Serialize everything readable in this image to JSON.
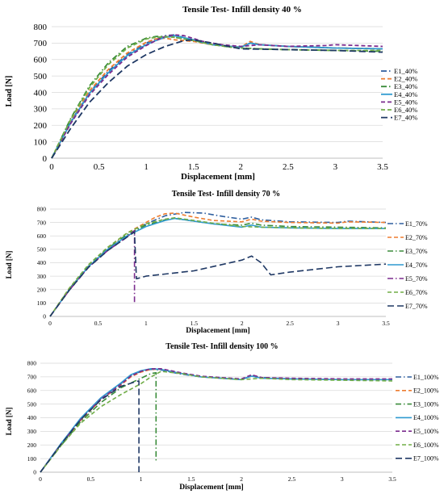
{
  "chart_data": [
    {
      "type": "line",
      "title": "Tensile Test- Infill density 40 %",
      "xlabel": "Displacement [mm]",
      "ylabel": "Load [N]",
      "xlim": [
        0,
        3.5
      ],
      "ylim": [
        0,
        800
      ],
      "xticks": [
        "0",
        "0.5",
        "1",
        "1.5",
        "2",
        "2.5",
        "3",
        "3.5"
      ],
      "yticks": [
        "0",
        "100",
        "200",
        "300",
        "400",
        "500",
        "600",
        "700",
        "800"
      ],
      "legend_position": "right",
      "grid": "horizontal",
      "series": [
        {
          "name": "E1_40%",
          "color": "#2e5e9e",
          "dash": "dashdot",
          "x": [
            0,
            0.2,
            0.4,
            0.6,
            0.8,
            1.0,
            1.1,
            1.2,
            1.3,
            1.5,
            1.7,
            1.9,
            2.0,
            2.1,
            2.2,
            2.5,
            3.0,
            3.5
          ],
          "y": [
            0,
            220,
            400,
            530,
            630,
            700,
            725,
            745,
            750,
            715,
            690,
            680,
            675,
            700,
            690,
            680,
            670,
            665
          ]
        },
        {
          "name": "E2_40%",
          "color": "#ed7d31",
          "dash": "dashed",
          "x": [
            0,
            0.2,
            0.4,
            0.6,
            0.8,
            1.0,
            1.1,
            1.2,
            1.3,
            1.5,
            1.7,
            1.9,
            2.0,
            2.1,
            2.2,
            2.5,
            3.0,
            3.5
          ],
          "y": [
            0,
            225,
            410,
            540,
            640,
            705,
            725,
            730,
            720,
            710,
            690,
            680,
            675,
            710,
            690,
            680,
            670,
            665
          ]
        },
        {
          "name": "E3_40%",
          "color": "#3b8c3b",
          "dash": "dashdot",
          "x": [
            0,
            0.2,
            0.4,
            0.6,
            0.8,
            1.0,
            1.1,
            1.2,
            1.3,
            1.5,
            1.7,
            1.9,
            2.0,
            2.2,
            2.5,
            3.0,
            3.5
          ],
          "y": [
            0,
            240,
            440,
            580,
            680,
            730,
            740,
            740,
            735,
            715,
            690,
            675,
            670,
            665,
            660,
            655,
            650
          ]
        },
        {
          "name": "E4_40%",
          "color": "#2e9ad0",
          "dash": "solid",
          "x": [
            0,
            0.2,
            0.4,
            0.6,
            0.8,
            1.0,
            1.1,
            1.2,
            1.3,
            1.5,
            1.7,
            1.9,
            2.0,
            2.1,
            2.2,
            2.5,
            3.0,
            3.5
          ],
          "y": [
            0,
            215,
            395,
            520,
            625,
            690,
            715,
            735,
            745,
            720,
            690,
            680,
            675,
            700,
            690,
            680,
            670,
            665
          ]
        },
        {
          "name": "E5_40%",
          "color": "#7b2c8e",
          "dash": "dashed",
          "x": [
            0,
            0.2,
            0.4,
            0.6,
            0.8,
            1.0,
            1.1,
            1.2,
            1.3,
            1.4,
            1.6,
            1.8,
            2.0,
            2.2,
            2.5,
            2.9,
            3.0,
            3.5
          ],
          "y": [
            0,
            210,
            385,
            510,
            615,
            685,
            715,
            740,
            750,
            745,
            710,
            690,
            680,
            690,
            680,
            685,
            690,
            680
          ]
        },
        {
          "name": "E6_40%",
          "color": "#70ad47",
          "dash": "dashed",
          "x": [
            0,
            0.2,
            0.4,
            0.6,
            0.8,
            1.0,
            1.1,
            1.2,
            1.3,
            1.5,
            1.7,
            1.9,
            2.0,
            2.2,
            2.5,
            3.0,
            3.5
          ],
          "y": [
            0,
            235,
            430,
            570,
            670,
            725,
            735,
            738,
            735,
            715,
            690,
            675,
            670,
            665,
            660,
            655,
            655
          ]
        },
        {
          "name": "E7_40%",
          "color": "#1f3864",
          "dash": "longdash",
          "x": [
            0,
            0.2,
            0.4,
            0.6,
            0.8,
            1.0,
            1.2,
            1.4,
            1.5,
            1.7,
            2.0,
            2.5,
            3.0,
            3.5
          ],
          "y": [
            0,
            180,
            340,
            460,
            560,
            630,
            680,
            715,
            720,
            700,
            665,
            660,
            655,
            645
          ]
        }
      ]
    },
    {
      "type": "line",
      "title": "Tensile Test- Infill density 70 %",
      "xlabel": "Displacement [mm]",
      "ylabel": "Load [N]",
      "xlim": [
        0,
        3.5
      ],
      "ylim": [
        0,
        800
      ],
      "xticks": [
        "0",
        "0.5",
        "1",
        "1.5",
        "2",
        "2.5",
        "3",
        "3.5"
      ],
      "yticks": [
        "0",
        "100",
        "200",
        "300",
        "400",
        "500",
        "600",
        "700",
        "800"
      ],
      "legend_position": "right",
      "grid": "horizontal",
      "series": [
        {
          "name": "E1_70%",
          "color": "#2e5e9e",
          "dash": "dashdot",
          "x": [
            0,
            0.2,
            0.4,
            0.6,
            0.8,
            1.0,
            1.2,
            1.4,
            1.6,
            1.8,
            2.0,
            2.1,
            2.2,
            2.5,
            3.0,
            3.1,
            3.5
          ],
          "y": [
            0,
            200,
            370,
            500,
            600,
            690,
            750,
            775,
            770,
            745,
            725,
            740,
            720,
            705,
            700,
            710,
            700
          ]
        },
        {
          "name": "E2_70%",
          "color": "#ed7d31",
          "dash": "dashed",
          "x": [
            0,
            0.2,
            0.4,
            0.6,
            0.8,
            1.0,
            1.1,
            1.2,
            1.3,
            1.5,
            1.7,
            2.0,
            2.1,
            2.2,
            2.5,
            3.0,
            3.1,
            3.5
          ],
          "y": [
            0,
            210,
            380,
            510,
            620,
            700,
            740,
            765,
            770,
            740,
            715,
            705,
            725,
            710,
            700,
            695,
            705,
            700
          ]
        },
        {
          "name": "E3_70%",
          "color": "#3b8c3b",
          "dash": "dashdot",
          "x": [
            0,
            0.2,
            0.4,
            0.6,
            0.8,
            1.0,
            1.2,
            1.3,
            1.5,
            1.7,
            2.0,
            2.1,
            2.2,
            2.5,
            3.0,
            3.5
          ],
          "y": [
            0,
            205,
            375,
            505,
            610,
            680,
            720,
            730,
            710,
            690,
            680,
            695,
            680,
            670,
            665,
            660
          ]
        },
        {
          "name": "E4_70%",
          "color": "#2e9ad0",
          "dash": "solid",
          "x": [
            0,
            0.2,
            0.4,
            0.6,
            0.8,
            1.0,
            1.2,
            1.3,
            1.5,
            1.7,
            2.0,
            2.1,
            2.2,
            2.5,
            3.0,
            3.5
          ],
          "y": [
            0,
            200,
            370,
            500,
            600,
            670,
            715,
            730,
            710,
            690,
            665,
            680,
            665,
            660,
            655,
            655
          ]
        },
        {
          "name": "E5_70%",
          "color": "#7b2c8e",
          "dash": "dashdot",
          "x": [
            0,
            0.2,
            0.4,
            0.6,
            0.8,
            0.88,
            0.88
          ],
          "y": [
            0,
            195,
            365,
            490,
            590,
            640,
            100
          ]
        },
        {
          "name": "E6_70%",
          "color": "#70ad47",
          "dash": "dashed",
          "x": [
            0,
            0.2,
            0.4,
            0.6,
            0.8,
            1.0,
            1.2,
            1.3,
            1.5,
            1.7,
            2.0,
            2.2,
            2.5,
            3.0,
            3.5
          ],
          "y": [
            0,
            210,
            385,
            515,
            620,
            690,
            725,
            735,
            715,
            695,
            670,
            665,
            660,
            655,
            655
          ]
        },
        {
          "name": "E7_70%",
          "color": "#1f3864",
          "dash": "longdash",
          "x": [
            0,
            0.2,
            0.4,
            0.6,
            0.8,
            0.88,
            0.9,
            1.0,
            1.5,
            2.0,
            2.1,
            2.2,
            2.3,
            2.5,
            3.0,
            3.5
          ],
          "y": [
            0,
            195,
            365,
            490,
            590,
            630,
            280,
            300,
            340,
            420,
            450,
            400,
            310,
            330,
            370,
            390
          ]
        }
      ]
    },
    {
      "type": "line",
      "title": "Tensile Test- Infill density 100 %",
      "xlabel": "Displacement [mm]",
      "ylabel": "Load [N]",
      "xlim": [
        0,
        3.5
      ],
      "ylim": [
        0,
        800
      ],
      "xticks": [
        "0",
        "0.5",
        "1",
        "1.5",
        "2",
        "2.5",
        "3",
        "3.5"
      ],
      "yticks": [
        "0",
        "100",
        "200",
        "300",
        "400",
        "500",
        "600",
        "700",
        "800"
      ],
      "legend_position": "right",
      "grid": "horizontal",
      "series": [
        {
          "name": "E1_100%",
          "color": "#2e5e9e",
          "dash": "dashdot",
          "x": [
            0,
            0.2,
            0.4,
            0.6,
            0.8,
            0.9,
            1.0,
            1.1,
            1.2,
            1.4,
            1.6,
            1.8,
            2.0,
            2.1,
            2.2,
            2.5,
            3.0,
            3.5
          ],
          "y": [
            0,
            200,
            390,
            540,
            650,
            710,
            740,
            755,
            750,
            720,
            700,
            690,
            680,
            710,
            695,
            685,
            680,
            680
          ]
        },
        {
          "name": "E2_100%",
          "color": "#ed7d31",
          "dash": "dashed",
          "x": [
            0,
            0.2,
            0.4,
            0.6,
            0.8,
            0.9,
            1.0,
            1.1,
            1.2,
            1.4,
            1.6,
            1.8,
            2.0,
            2.1,
            2.2,
            2.5,
            3.0,
            3.5
          ],
          "y": [
            0,
            195,
            380,
            530,
            640,
            700,
            735,
            755,
            755,
            725,
            700,
            690,
            680,
            705,
            690,
            685,
            680,
            680
          ]
        },
        {
          "name": "E3_100%",
          "color": "#3b8c3b",
          "dash": "dashdot",
          "x": [
            0,
            0.2,
            0.4,
            0.6,
            0.8,
            1.0,
            1.1,
            1.15,
            1.15
          ],
          "y": [
            0,
            190,
            370,
            510,
            620,
            690,
            725,
            730,
            80
          ]
        },
        {
          "name": "E4_100%",
          "color": "#2e9ad0",
          "dash": "solid",
          "x": [
            0,
            0.2,
            0.4,
            0.6,
            0.8,
            0.9,
            1.0,
            1.1,
            1.2,
            1.4,
            1.6,
            1.8,
            2.0,
            2.1,
            2.2,
            2.5,
            3.0,
            3.5
          ],
          "y": [
            0,
            205,
            395,
            545,
            655,
            715,
            745,
            760,
            755,
            725,
            700,
            690,
            680,
            705,
            690,
            685,
            680,
            680
          ]
        },
        {
          "name": "E5_100%",
          "color": "#7b2c8e",
          "dash": "dashed",
          "x": [
            0,
            0.2,
            0.4,
            0.6,
            0.8,
            0.9,
            1.0,
            1.1,
            1.2,
            1.4,
            1.6,
            1.8,
            2.0,
            2.1,
            2.2,
            2.5,
            3.0,
            3.5
          ],
          "y": [
            0,
            200,
            385,
            535,
            645,
            705,
            740,
            760,
            760,
            730,
            705,
            695,
            685,
            715,
            695,
            690,
            685,
            685
          ]
        },
        {
          "name": "E6_100%",
          "color": "#70ad47",
          "dash": "dashed",
          "x": [
            0,
            0.2,
            0.4,
            0.6,
            0.8,
            1.0,
            1.1,
            1.2,
            1.4,
            1.6,
            1.8,
            2.0,
            2.2,
            2.5,
            3.0,
            3.5
          ],
          "y": [
            0,
            190,
            360,
            480,
            570,
            650,
            700,
            740,
            725,
            700,
            690,
            680,
            690,
            680,
            675,
            670
          ]
        },
        {
          "name": "E7_100%",
          "color": "#1f3864",
          "dash": "longdash",
          "x": [
            0,
            0.2,
            0.4,
            0.6,
            0.8,
            0.95,
            0.98,
            0.98
          ],
          "y": [
            0,
            200,
            385,
            530,
            630,
            665,
            670,
            0
          ]
        }
      ]
    }
  ]
}
